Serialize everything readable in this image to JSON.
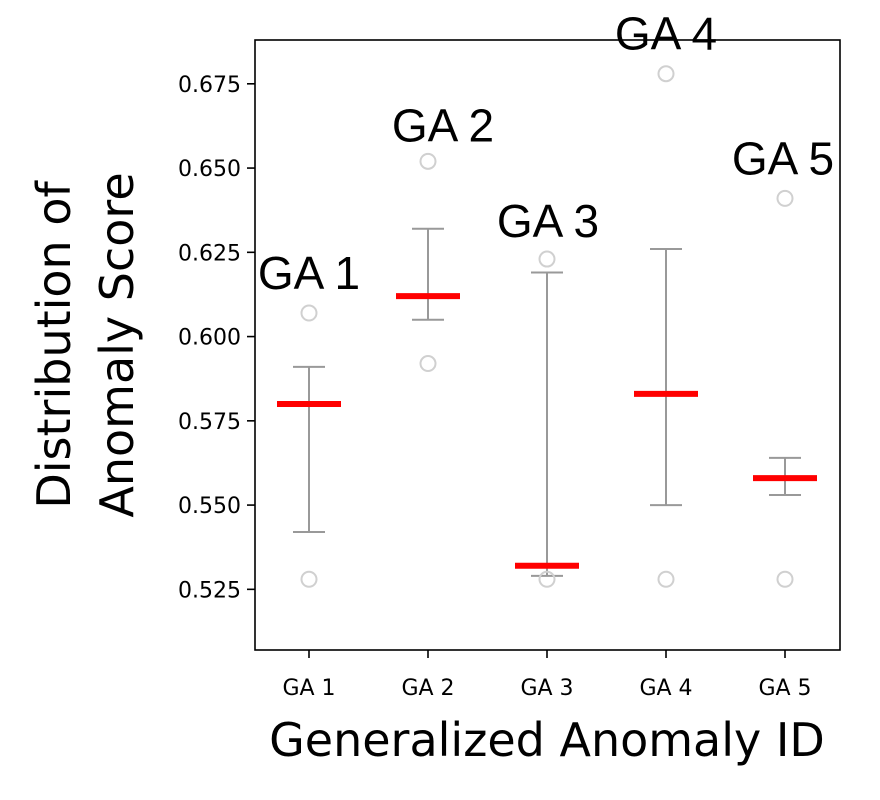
{
  "chart_data": {
    "type": "box",
    "title": "",
    "xlabel": "Generalized Anomaly ID",
    "ylabel_lines": [
      "Distribution of",
      "Anomaly Score"
    ],
    "categories": [
      "GA 1",
      "GA 2",
      "GA 3",
      "GA 4",
      "GA 5"
    ],
    "annotations": [
      "GA 1",
      "GA 2",
      "GA 3",
      "GA 4",
      "GA 5"
    ],
    "ylim": [
      0.507,
      0.688
    ],
    "yticks": [
      0.525,
      0.55,
      0.575,
      0.6,
      0.625,
      0.65,
      0.675
    ],
    "ytick_labels": [
      "0.525",
      "0.550",
      "0.575",
      "0.600",
      "0.625",
      "0.650",
      "0.675"
    ],
    "series": [
      {
        "name": "GA 1",
        "median": 0.58,
        "whisker_low": 0.542,
        "whisker_high": 0.591,
        "outliers": [
          0.528,
          0.607
        ]
      },
      {
        "name": "GA 2",
        "median": 0.612,
        "whisker_low": 0.605,
        "whisker_high": 0.632,
        "outliers": [
          0.592,
          0.652
        ]
      },
      {
        "name": "GA 3",
        "median": 0.532,
        "whisker_low": 0.529,
        "whisker_high": 0.619,
        "outliers": [
          0.528,
          0.623
        ]
      },
      {
        "name": "GA 4",
        "median": 0.583,
        "whisker_low": 0.55,
        "whisker_high": 0.626,
        "outliers": [
          0.528,
          0.678
        ]
      },
      {
        "name": "GA 5",
        "median": 0.558,
        "whisker_low": 0.553,
        "whisker_high": 0.564,
        "outliers": [
          0.528,
          0.641
        ]
      }
    ],
    "colors": {
      "median": "#ff0000",
      "whisker": "#999999",
      "outlier": "#d0d0d0",
      "axis": "#000000"
    },
    "grid": false
  }
}
